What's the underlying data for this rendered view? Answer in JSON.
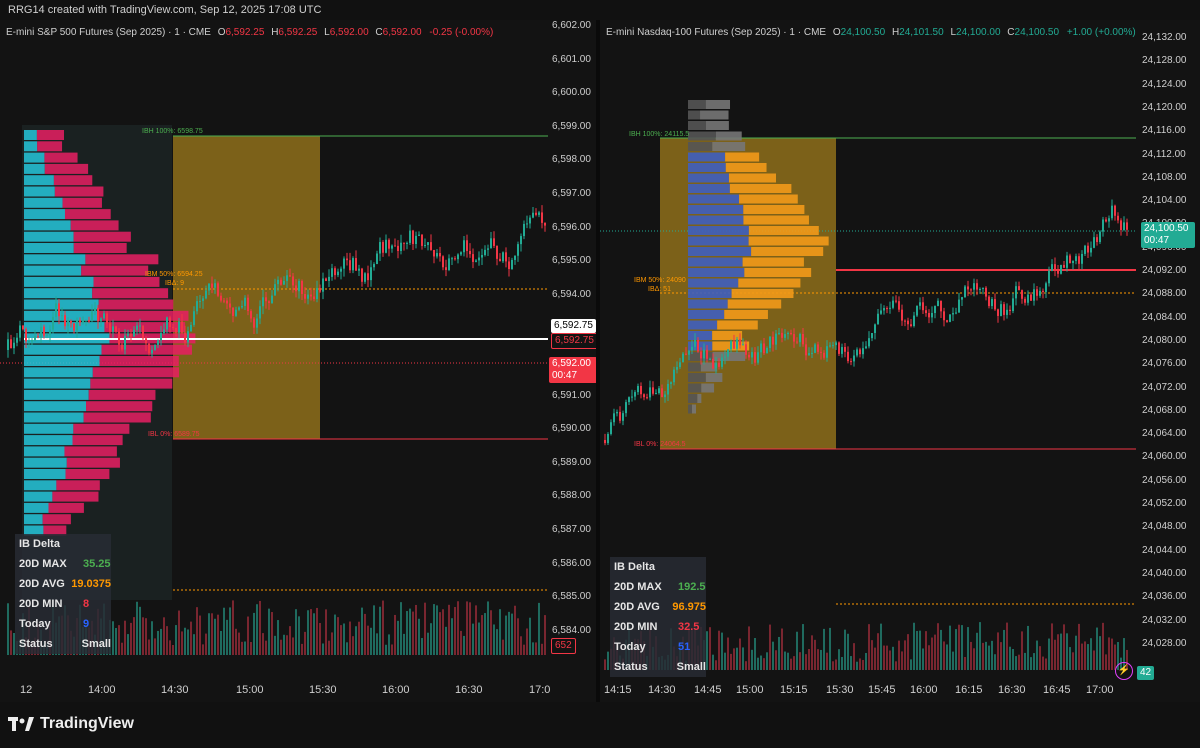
{
  "header": {
    "watermark": "RRG14 created with TradingView.com, Sep 12, 2025 17:08 UTC"
  },
  "left_chart": {
    "symbol": "E-mini S&P 500 Futures (Sep 2025) · 1 · CME",
    "ohlc": {
      "o": "6,592.25",
      "h": "6,592.25",
      "l": "6,592.00",
      "c": "6,592.00",
      "change": "-0.25 (-0.00%)"
    },
    "y_axis": [
      "6,602.00",
      "6,601.00",
      "6,600.00",
      "6,599.00",
      "6,598.00",
      "6,597.00",
      "6,596.00",
      "6,595.00",
      "6,594.00",
      "6,593.00",
      "6,592.00",
      "6,591.00",
      "6,590.00",
      "6,589.00",
      "6,588.00",
      "6,587.00",
      "6,586.00",
      "6,585.00",
      "6,584.00"
    ],
    "x_axis": [
      "12",
      "14:00",
      "14:30",
      "15:00",
      "15:30",
      "16:00",
      "16:30",
      "17:0"
    ],
    "price_tags": {
      "poc": "6,592.75",
      "poc2": "6,592.75",
      "last": "6,592.00",
      "countdown": "00:47",
      "volume": "652"
    },
    "ib_labels": {
      "ibh": "IBH 100%: 6598.75",
      "ibm": "IBM 50%: 6594.25",
      "iba": "IBΔ: 9",
      "ibl": "IBL 0%: 6589.75"
    },
    "ib_stats": [
      {
        "key": "IB Delta",
        "value": ""
      },
      {
        "key": "20D MAX",
        "value": "35.25"
      },
      {
        "key": "20D AVG",
        "value": "19.0375"
      },
      {
        "key": "20D MIN",
        "value": "8"
      },
      {
        "key": "Today",
        "value": "9"
      },
      {
        "key": "Status",
        "value": "Small"
      }
    ]
  },
  "right_chart": {
    "symbol": "E-mini Nasdaq-100 Futures (Sep 2025) · 1 · CME",
    "ohlc": {
      "o": "24,100.50",
      "h": "24,101.50",
      "l": "24,100.00",
      "c": "24,100.50",
      "change": "+1.00 (+0.00%)"
    },
    "y_axis": [
      "24,132.00",
      "24,128.00",
      "24,124.00",
      "24,120.00",
      "24,116.00",
      "24,112.00",
      "24,108.00",
      "24,104.00",
      "24,100.00",
      "24,096.00",
      "24,092.00",
      "24,088.00",
      "24,084.00",
      "24,080.00",
      "24,076.00",
      "24,072.00",
      "24,068.00",
      "24,064.00",
      "24,060.00",
      "24,056.00",
      "24,052.00",
      "24,048.00",
      "24,044.00",
      "24,040.00",
      "24,036.00",
      "24,032.00",
      "24,028.00"
    ],
    "x_axis": [
      "14:15",
      "14:30",
      "14:45",
      "15:00",
      "15:15",
      "15:30",
      "15:45",
      "16:00",
      "16:15",
      "16:30",
      "16:45",
      "17:00"
    ],
    "price_tags": {
      "last": "24,100.50",
      "countdown": "00:47",
      "volume": "42"
    },
    "ib_labels": {
      "ibh": "IBH 100%: 24115.5",
      "ibm": "IBM 50%: 24090",
      "iba": "IBΔ: 51",
      "ibl": "IBL 0%: 24064.5"
    },
    "ib_stats": [
      {
        "key": "IB Delta",
        "value": ""
      },
      {
        "key": "20D MAX",
        "value": "192.5"
      },
      {
        "key": "20D AVG",
        "value": "96.975"
      },
      {
        "key": "20D MIN",
        "value": "32.5"
      },
      {
        "key": "Today",
        "value": "51"
      },
      {
        "key": "Status",
        "value": "Small"
      }
    ]
  },
  "footer": {
    "brand": "TradingView"
  },
  "colors": {
    "up": "#22ab94",
    "down": "#f23645",
    "ib_box": "#a07c1c",
    "profile_buy": "#26c6da",
    "profile_sell": "#e91e63",
    "stat_green": "#4caf50",
    "stat_orange": "#ff9800",
    "stat_red": "#f23645",
    "stat_blue": "#2962ff"
  }
}
